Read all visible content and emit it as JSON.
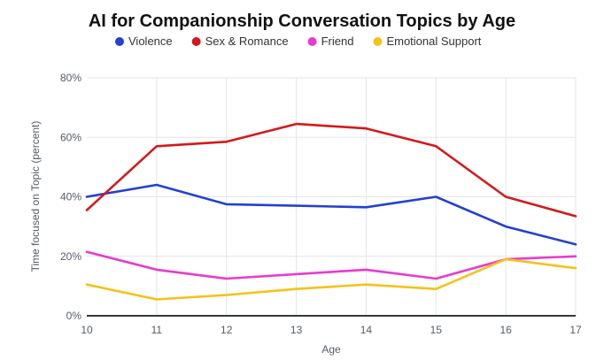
{
  "chart_data": {
    "type": "line",
    "title": "AI for Companionship Conversation Topics by Age",
    "xlabel": "Age",
    "ylabel": "Time focused on Topic (percent)",
    "x": [
      10,
      11,
      12,
      13,
      14,
      15,
      16,
      17
    ],
    "ylim": [
      0,
      80
    ],
    "yticks": [
      "0%",
      "20%",
      "40%",
      "60%",
      "80%"
    ],
    "ytick_values": [
      0,
      20,
      40,
      60,
      80
    ],
    "grid": true,
    "legend_position": "top",
    "series": [
      {
        "name": "Violence",
        "color": "#2340d1",
        "values": [
          40,
          44,
          37.5,
          37,
          36.5,
          40,
          30,
          24
        ]
      },
      {
        "name": "Sex & Romance",
        "color": "#d31a1a",
        "values": [
          35.5,
          57,
          58.5,
          64.5,
          63,
          57,
          40,
          33.5
        ]
      },
      {
        "name": "Friend",
        "color": "#e93ad0",
        "values": [
          21.5,
          15.5,
          12.5,
          14,
          15.5,
          12.5,
          19,
          20
        ]
      },
      {
        "name": "Emotional Support",
        "color": "#f5c21a",
        "values": [
          10.5,
          5.5,
          7,
          9,
          10.5,
          9,
          19,
          16
        ]
      }
    ]
  }
}
